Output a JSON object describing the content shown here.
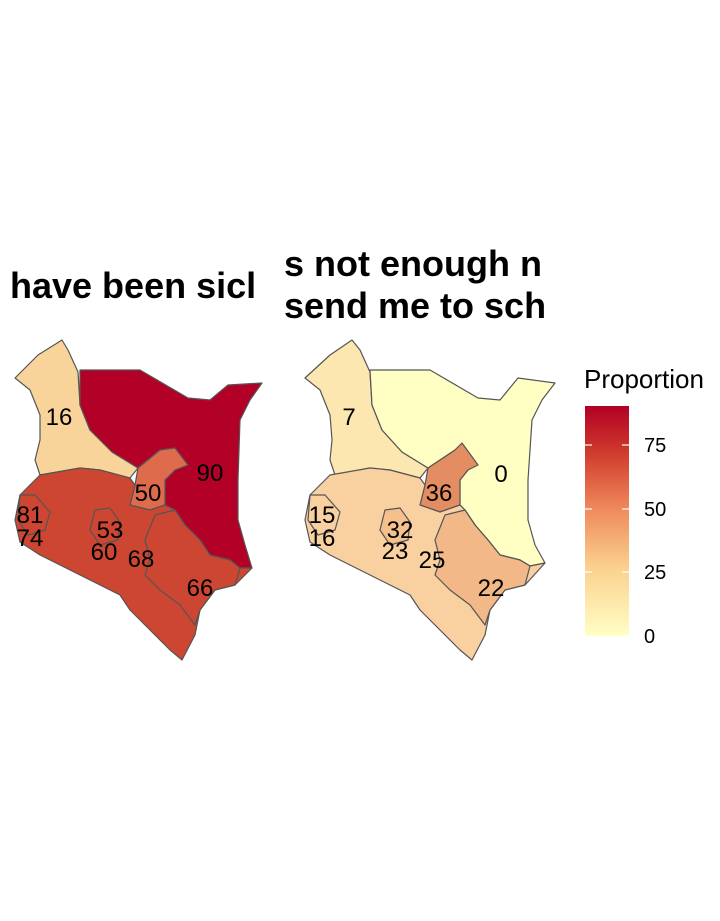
{
  "panels": [
    {
      "title": "have been sicl",
      "regions": [
        {
          "id": "north-west",
          "value": 16,
          "color": "#f9d49a"
        },
        {
          "id": "north-east",
          "value": 90,
          "color": "#b20026"
        },
        {
          "id": "central-east",
          "value": 50,
          "color": "#de6b4b"
        },
        {
          "id": "south",
          "value": 68,
          "color": "#cd4632"
        },
        {
          "id": "rest",
          "value": 53,
          "color": "#cd4632"
        }
      ],
      "labels": [
        "16",
        "90",
        "50",
        "81",
        "74",
        "53",
        "60",
        "68",
        "66"
      ]
    },
    {
      "title_lines": [
        "s not enough n",
        "send me to sch"
      ],
      "regions": [
        {
          "id": "north-west",
          "value": 7,
          "color": "#fde7b0"
        },
        {
          "id": "north-east",
          "value": 0,
          "color": "#ffffc4"
        },
        {
          "id": "central-east",
          "value": 36,
          "color": "#e48c62"
        },
        {
          "id": "south",
          "value": 22,
          "color": "#f3b887"
        },
        {
          "id": "rest",
          "value": 23,
          "color": "#f9d0a0"
        }
      ],
      "labels": [
        "7",
        "0",
        "36",
        "15",
        "16",
        "32",
        "23",
        "25",
        "22"
      ]
    }
  ],
  "legend": {
    "title": "Proportion",
    "ticks": [
      "75",
      "50",
      "25",
      "0"
    ],
    "range": [
      0,
      90
    ],
    "colors": [
      "#ffffcc",
      "#fed976",
      "#fd8d3c",
      "#e31a1c",
      "#b10026"
    ]
  }
}
